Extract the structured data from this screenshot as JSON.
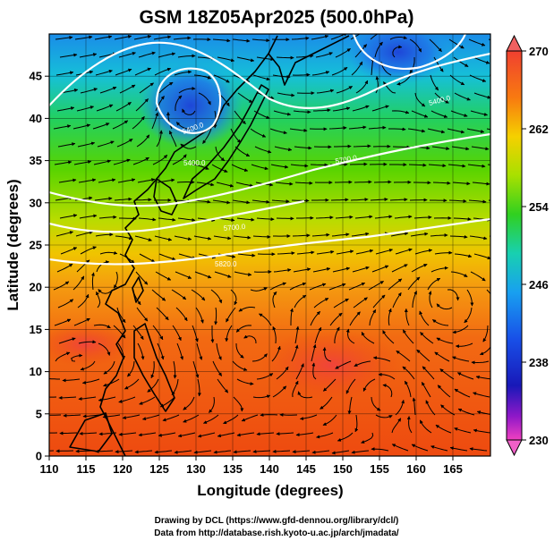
{
  "title": "GSM 18Z05Apr2025 (500.0hPa)",
  "xlabel": "Longitude (degrees)",
  "ylabel": "Latitude  (degrees)",
  "x_ticks": [
    "110",
    "115",
    "120",
    "125",
    "130",
    "135",
    "140",
    "145",
    "150",
    "155",
    "160",
    "165"
  ],
  "y_ticks": [
    "0",
    "5",
    "10",
    "15",
    "20",
    "25",
    "30",
    "35",
    "40",
    "45"
  ],
  "colorbar_ticks": [
    "270",
    "262",
    "254",
    "246",
    "238",
    "230"
  ],
  "colorbar_range": [
    230,
    270
  ],
  "credit_line1": "Drawing by DCL (https://www.gfd-dennou.org/library/dcl/)",
  "credit_line2": "Data from http://database.rish.kyoto-u.ac.jp/arch/jmadata/",
  "contour_labels": [
    "5400.0",
    "5400.0",
    "5400.0",
    "5700.0",
    "5700.0",
    "5820.0"
  ],
  "colors": {
    "cold_low": "#1040e0",
    "cool": "#18c8c0",
    "mid": "#40d000",
    "warm": "#f0c000",
    "hot": "#ee3a10"
  }
}
